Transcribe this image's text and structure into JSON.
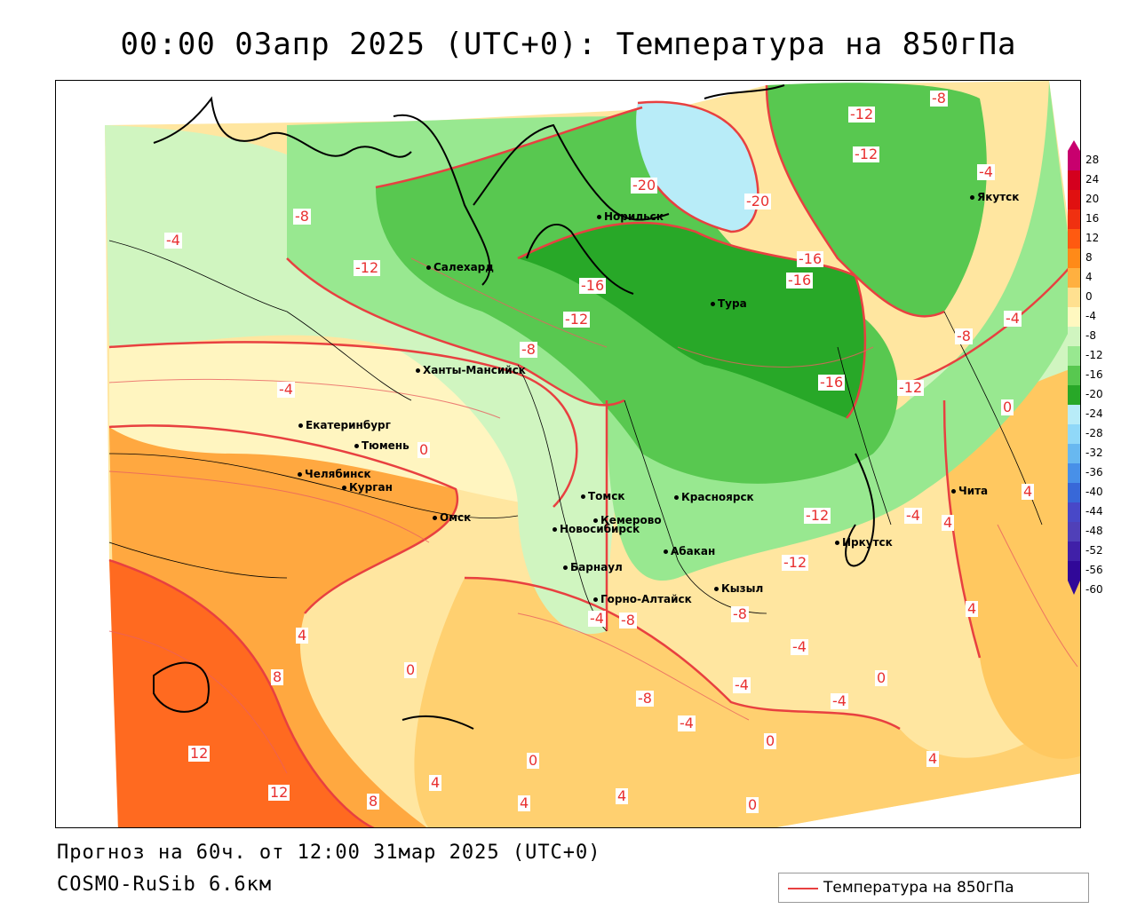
{
  "title": "00:00 03апр 2025 (UTC+0): Температура на 850гПа",
  "forecast_line": "Прогноз на 60ч. от 12:00 31мар 2025 (UTC+0)",
  "model_line": "COSMO-RuSib 6.6км",
  "legend": {
    "label": "Температура на 850гПа",
    "color": "#e84040"
  },
  "scale": {
    "labels": [
      "28",
      "24",
      "20",
      "16",
      "12",
      "8",
      "4",
      "0",
      "-4",
      "-8",
      "-12",
      "-16",
      "-20",
      "-24",
      "-28",
      "-32",
      "-36",
      "-40",
      "-44",
      "-48",
      "-52",
      "-56",
      "-60"
    ],
    "colors": [
      "#c8006e",
      "#d4001e",
      "#e01010",
      "#f03010",
      "#ff5a10",
      "#ff8a18",
      "#ffb040",
      "#ffe090",
      "#fff8c0",
      "#d0f5c0",
      "#98e890",
      "#58c850",
      "#28a828",
      "#b8ecf8",
      "#90d8f8",
      "#68b8f0",
      "#4890e8",
      "#3868d8",
      "#4848c8",
      "#5040b8",
      "#4020a8",
      "#300898"
    ]
  },
  "cities": [
    {
      "name": "Норильск"
    },
    {
      "name": "Якутск"
    },
    {
      "name": "Салехард"
    },
    {
      "name": "Тура"
    },
    {
      "name": "Ханты-Мансийск"
    },
    {
      "name": "Екатеринбург"
    },
    {
      "name": "Тюмень"
    },
    {
      "name": "Челябинск"
    },
    {
      "name": "Курган"
    },
    {
      "name": "Омск"
    },
    {
      "name": "Новосибирск"
    },
    {
      "name": "Томск"
    },
    {
      "name": "Кемерово"
    },
    {
      "name": "Красноярск"
    },
    {
      "name": "Барнаул"
    },
    {
      "name": "Абакан"
    },
    {
      "name": "Иркутск"
    },
    {
      "name": "Чита"
    },
    {
      "name": "Кызыл"
    },
    {
      "name": "Горно-Алтайск"
    }
  ],
  "contour_labels": [
    "-8",
    "-12",
    "-12",
    "-4",
    "-20",
    "-20",
    "-8",
    "-4",
    "-12",
    "-16",
    "-16",
    "-16",
    "-12",
    "-4",
    "-8",
    "-8",
    "-4",
    "-16",
    "-12",
    "0",
    "-4",
    "4",
    "0",
    "-12",
    "-4",
    "-8",
    "-12",
    "4",
    "-4",
    "0",
    "-8",
    "-4",
    "4",
    "-8",
    "-4",
    "-4",
    "0",
    "12",
    "12",
    "8",
    "4",
    "0",
    "0",
    "4",
    "4",
    "4",
    "4",
    "0",
    "8"
  ]
}
